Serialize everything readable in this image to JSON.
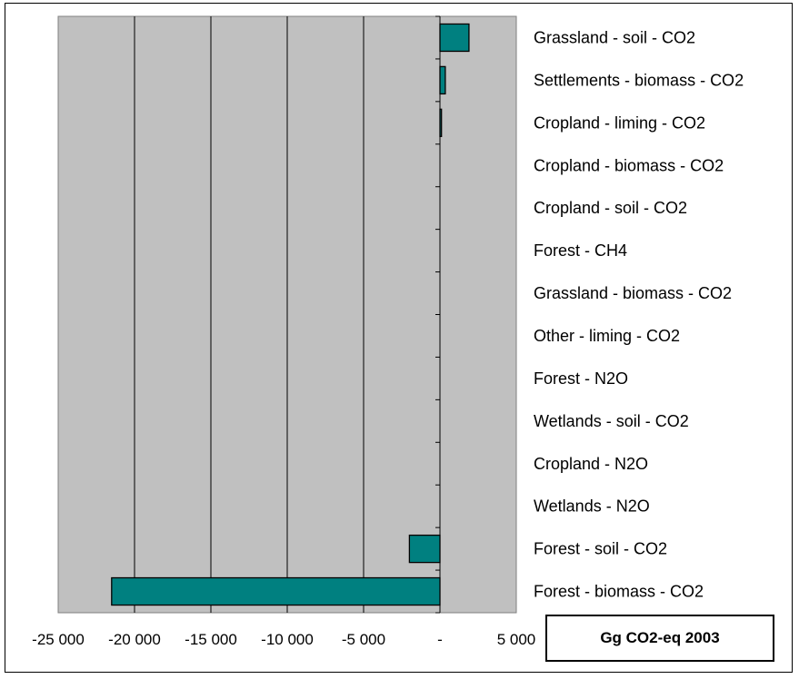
{
  "chart_data": {
    "type": "bar",
    "orientation": "horizontal",
    "categories": [
      "Grassland - soil - CO2",
      "Settlements - biomass - CO2",
      "Cropland - liming - CO2",
      "Cropland - biomass - CO2",
      "Cropland - soil - CO2",
      "Forest - CH4",
      "Grassland - biomass - CO2",
      "Other - liming - CO2",
      "Forest - N2O",
      "Wetlands - soil - CO2",
      "Cropland - N2O",
      "Wetlands - N2O",
      "Forest - soil - CO2",
      "Forest - biomass - CO2"
    ],
    "values": [
      1900,
      350,
      100,
      0,
      0,
      0,
      0,
      0,
      0,
      0,
      0,
      0,
      -2000,
      -21500
    ],
    "xlim": [
      -25000,
      5000
    ],
    "xticks": [
      -25000,
      -20000,
      -15000,
      -10000,
      -5000,
      0,
      5000
    ],
    "xtick_labels": [
      "-25 000",
      "-20 000",
      "-15 000",
      "-10 000",
      "-5 000",
      "-",
      "5 000"
    ],
    "legend": "Gg CO2-eq 2003",
    "bar_color": "#008080",
    "plot_background": "#c0c0c0",
    "grid": true
  }
}
